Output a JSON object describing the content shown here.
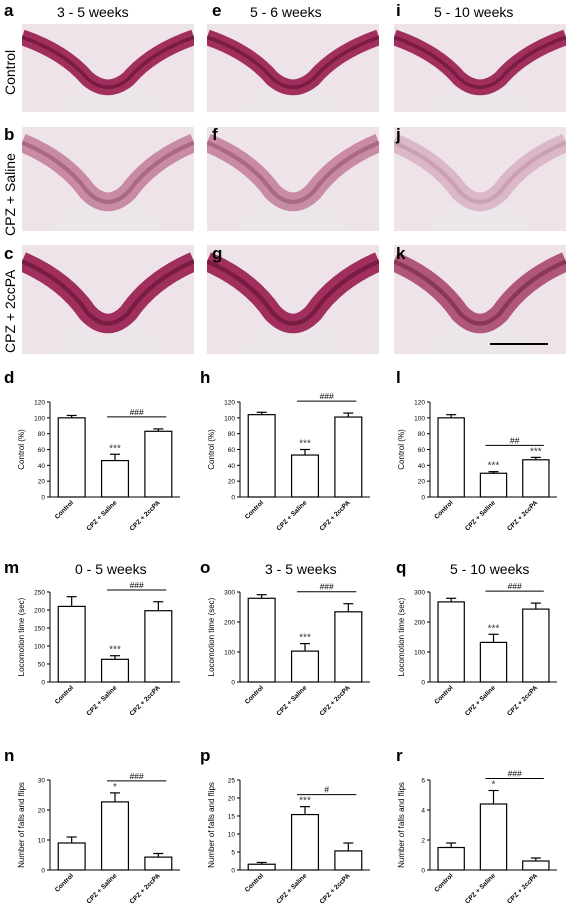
{
  "columns": [
    {
      "title": "3 - 5 weeks"
    },
    {
      "title": "5 - 6 weeks"
    },
    {
      "title": "5 - 10 weeks"
    }
  ],
  "rows": [
    {
      "label": "Control"
    },
    {
      "label": "CPZ + Saline"
    },
    {
      "label": "CPZ + 2ccPA"
    }
  ],
  "micrographs": [
    {
      "letter": "a",
      "tone": "strong"
    },
    {
      "letter": "e",
      "tone": "strong"
    },
    {
      "letter": "i",
      "tone": "strong"
    },
    {
      "letter": "b",
      "tone": "weak"
    },
    {
      "letter": "f",
      "tone": "weak"
    },
    {
      "letter": "j",
      "tone": "faint"
    },
    {
      "letter": "c",
      "tone": "strong"
    },
    {
      "letter": "g",
      "tone": "strong"
    },
    {
      "letter": "k",
      "tone": "medium"
    }
  ],
  "colors": {
    "stain": "#9a2050",
    "bar_fill": "#ffffff",
    "axis": "#000000"
  },
  "chart_data": [
    {
      "type": "bar",
      "letter": "d",
      "title": "",
      "ylabel": "Control (%)",
      "ylim": [
        0,
        120
      ],
      "yticks": [
        0,
        20,
        40,
        60,
        80,
        100,
        120
      ],
      "categories": [
        "Control",
        "CPZ + Saline",
        "CPZ + 2ccPA"
      ],
      "values": [
        100,
        46,
        83
      ],
      "errors": [
        3,
        8,
        3
      ],
      "stars": [
        "",
        "***",
        ""
      ],
      "bracket": {
        "from": 1,
        "to": 2,
        "label": "###"
      }
    },
    {
      "type": "bar",
      "letter": "h",
      "title": "",
      "ylabel": "Control (%)",
      "ylim": [
        0,
        120
      ],
      "yticks": [
        0,
        20,
        40,
        60,
        80,
        100,
        120
      ],
      "categories": [
        "Control",
        "CPZ + Saline",
        "CPZ + 2ccPA"
      ],
      "values": [
        104,
        53,
        101
      ],
      "errors": [
        3,
        7,
        5
      ],
      "stars": [
        "",
        "***",
        ""
      ],
      "bracket": {
        "from": 1,
        "to": 2,
        "label": "###"
      }
    },
    {
      "type": "bar",
      "letter": "l",
      "title": "",
      "ylabel": "Control (%)",
      "ylim": [
        0,
        120
      ],
      "yticks": [
        0,
        20,
        40,
        60,
        80,
        100,
        120
      ],
      "categories": [
        "Control",
        "CPZ + Saline",
        "CPZ + 2ccPA"
      ],
      "values": [
        100,
        30,
        47
      ],
      "errors": [
        4,
        2,
        3
      ],
      "stars": [
        "",
        "***",
        "***"
      ],
      "bracket": {
        "from": 1,
        "to": 2,
        "label": "##"
      }
    },
    {
      "type": "bar",
      "letter": "m",
      "title": "0 - 5 weeks",
      "ylabel": "Locomotion time (sec)",
      "ylim": [
        0,
        250
      ],
      "yticks": [
        0,
        50,
        100,
        150,
        200,
        250
      ],
      "categories": [
        "Control",
        "CPZ + Saline",
        "CPZ + 2ccPA"
      ],
      "values": [
        210,
        63,
        198
      ],
      "errors": [
        27,
        10,
        25
      ],
      "stars": [
        "",
        "***",
        ""
      ],
      "bracket": {
        "from": 1,
        "to": 2,
        "label": "###"
      }
    },
    {
      "type": "bar",
      "letter": "o",
      "title": "3 - 5 weeks",
      "ylabel": "Locomotion time (sec)",
      "ylim": [
        0,
        300
      ],
      "yticks": [
        0,
        100,
        200,
        300
      ],
      "categories": [
        "Control",
        "CPZ + Saline",
        "CPZ + 2ccPA"
      ],
      "values": [
        279,
        103,
        234
      ],
      "errors": [
        12,
        25,
        27
      ],
      "stars": [
        "",
        "***",
        ""
      ],
      "bracket": {
        "from": 1,
        "to": 2,
        "label": "###"
      }
    },
    {
      "type": "bar",
      "letter": "q",
      "title": "5 - 10 weeks",
      "ylabel": "Locomotion time (sec)",
      "ylim": [
        0,
        300
      ],
      "yticks": [
        0,
        100,
        200,
        300
      ],
      "categories": [
        "Control",
        "CPZ + Saline",
        "CPZ + 2ccPA"
      ],
      "values": [
        267,
        132,
        243
      ],
      "errors": [
        12,
        27,
        20
      ],
      "stars": [
        "",
        "***",
        ""
      ],
      "bracket": {
        "from": 1,
        "to": 2,
        "label": "###"
      }
    },
    {
      "type": "bar",
      "letter": "n",
      "title": "",
      "ylabel": "Number of falls and flips",
      "ylim": [
        0,
        30
      ],
      "yticks": [
        0,
        10,
        20,
        30
      ],
      "categories": [
        "Control",
        "CPZ + Saline",
        "CPZ + 2ccPA"
      ],
      "values": [
        9,
        22.7,
        4.3
      ],
      "errors": [
        2,
        3,
        1.2
      ],
      "stars": [
        "",
        "*",
        ""
      ],
      "bracket": {
        "from": 1,
        "to": 2,
        "label": "###"
      }
    },
    {
      "type": "bar",
      "letter": "p",
      "title": "",
      "ylabel": "Number of falls and flips",
      "ylim": [
        0,
        25
      ],
      "yticks": [
        0,
        5,
        10,
        15,
        20,
        25
      ],
      "categories": [
        "Control",
        "CPZ + Saline",
        "CPZ + 2ccPA"
      ],
      "values": [
        1.6,
        15.4,
        5.3
      ],
      "errors": [
        0.5,
        2.2,
        2.2
      ],
      "stars": [
        "",
        "***",
        ""
      ],
      "bracket": {
        "from": 1,
        "to": 2,
        "label": "#"
      }
    },
    {
      "type": "bar",
      "letter": "r",
      "title": "",
      "ylabel": "Number of falls and flips",
      "ylim": [
        0,
        6
      ],
      "yticks": [
        0,
        2,
        4,
        6
      ],
      "categories": [
        "Control",
        "CPZ + Saline",
        "CPZ + 2ccPA"
      ],
      "values": [
        1.5,
        4.4,
        0.6
      ],
      "errors": [
        0.3,
        0.9,
        0.2
      ],
      "stars": [
        "",
        "*",
        ""
      ],
      "bracket": {
        "from": 1,
        "to": 2,
        "label": "###"
      }
    }
  ]
}
